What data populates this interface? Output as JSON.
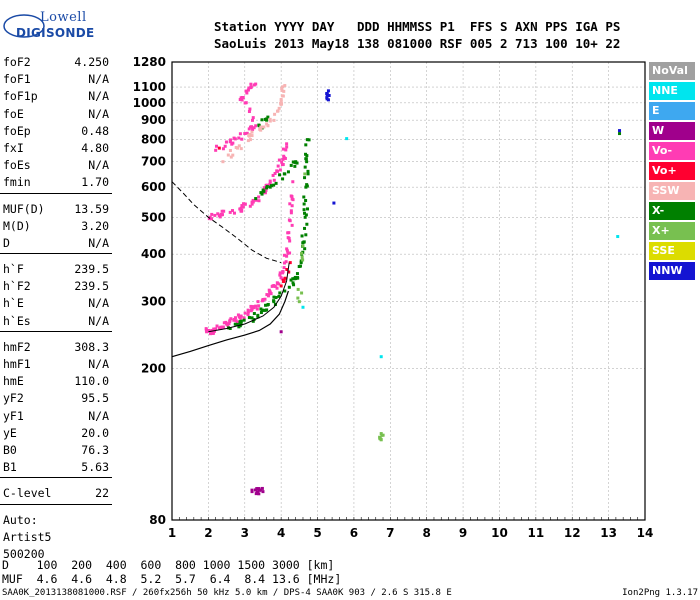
{
  "logo": {
    "line1": "Lowell",
    "line2": "DIGISONDE"
  },
  "header": {
    "row1": "Station YYYY DAY   DDD HHMMSS P1  FFS S AXN PPS IGA PS",
    "row2": "SaoLuis 2013 May18 138 081000 RSF 005 2 713 100 10+ 22"
  },
  "params_group1": [
    {
      "k": "foF2",
      "v": "4.250"
    },
    {
      "k": "foF1",
      "v": "N/A"
    },
    {
      "k": "foF1p",
      "v": "N/A"
    },
    {
      "k": "foE",
      "v": "N/A"
    },
    {
      "k": "foEp",
      "v": "0.48"
    },
    {
      "k": "fxI",
      "v": "4.80"
    },
    {
      "k": "foEs",
      "v": "N/A"
    },
    {
      "k": "fmin",
      "v": "1.70"
    }
  ],
  "params_group2": [
    {
      "k": "MUF(D)",
      "v": "13.59"
    },
    {
      "k": "M(D)",
      "v": "3.20"
    },
    {
      "k": "D",
      "v": "N/A"
    }
  ],
  "params_group3": [
    {
      "k": "h`F",
      "v": "239.5"
    },
    {
      "k": "h`F2",
      "v": "239.5"
    },
    {
      "k": "h`E",
      "v": "N/A"
    },
    {
      "k": "h`Es",
      "v": "N/A"
    }
  ],
  "params_group4": [
    {
      "k": "hmF2",
      "v": "308.3"
    },
    {
      "k": "hmF1",
      "v": "N/A"
    },
    {
      "k": "hmE",
      "v": "110.0"
    },
    {
      "k": "yF2",
      "v": "95.5"
    },
    {
      "k": "yF1",
      "v": "N/A"
    },
    {
      "k": "yE",
      "v": "20.0"
    },
    {
      "k": "B0",
      "v": "76.3"
    },
    {
      "k": "B1",
      "v": "5.63"
    }
  ],
  "params_group5": [
    {
      "k": "C-level",
      "v": "22"
    }
  ],
  "auto": {
    "line1": "Auto:",
    "line2": "Artist5",
    "line3": "500200"
  },
  "legend": [
    {
      "label": "NoVal",
      "bg": "#a0a0a0",
      "fg": "#ffffff"
    },
    {
      "label": "NNE",
      "bg": "#00e5ee",
      "fg": "#ffffff"
    },
    {
      "label": "E",
      "bg": "#3ea8f0",
      "fg": "#ffffff"
    },
    {
      "label": "W",
      "bg": "#a0008c",
      "fg": "#ffffff"
    },
    {
      "label": "Vo-",
      "bg": "#ff3cb4",
      "fg": "#ffffff"
    },
    {
      "label": "Vo+",
      "bg": "#ff0030",
      "fg": "#ffffff"
    },
    {
      "label": "SSW",
      "bg": "#f7b4b4",
      "fg": "#ffffff"
    },
    {
      "label": "X-",
      "bg": "#008000",
      "fg": "#ffffff"
    },
    {
      "label": "X+",
      "bg": "#78c050",
      "fg": "#ffffff"
    },
    {
      "label": "SSE",
      "bg": "#dcdc00",
      "fg": "#ffffff"
    },
    {
      "label": "NNW",
      "bg": "#1414d2",
      "fg": "#ffffff"
    }
  ],
  "muf_table": {
    "row1": "D    100  200  400  600  800 1000 1500 3000 [km]",
    "row2": "MUF  4.6  4.6  4.8  5.2  5.7  6.4  8.4 13.6 [MHz]"
  },
  "footer": {
    "left": "SAA0K_2013138081000.RSF / 260fx256h 50 kHz 5.0 km / DPS-4 SAA0K 903 / 2.6 S 315.8 E",
    "right": "Ion2Png 1.3.17"
  },
  "chart_data": {
    "type": "scatter",
    "title": "",
    "xlabel": "",
    "ylabel": "",
    "xlim": [
      1,
      14
    ],
    "ylim": [
      80,
      1280
    ],
    "y_scale": "log",
    "xticks": [
      1,
      2,
      3,
      4,
      5,
      6,
      7,
      8,
      9,
      10,
      11,
      12,
      13,
      14
    ],
    "yticks": [
      80,
      200,
      300,
      400,
      500,
      600,
      700,
      800,
      900,
      1000,
      1100,
      1280
    ],
    "grid": true,
    "series": [
      {
        "name": "Vo-",
        "color": "#ff3cb4",
        "points": [
          [
            1.95,
            250
          ],
          [
            2.1,
            252
          ],
          [
            2.3,
            256
          ],
          [
            2.5,
            262
          ],
          [
            2.7,
            268
          ],
          [
            2.9,
            275
          ],
          [
            3.1,
            282
          ],
          [
            3.3,
            292
          ],
          [
            3.5,
            304
          ],
          [
            3.7,
            318
          ],
          [
            3.9,
            335
          ],
          [
            4.05,
            360
          ],
          [
            4.15,
            395
          ],
          [
            4.22,
            440
          ],
          [
            4.28,
            520
          ],
          [
            4.32,
            620
          ],
          [
            2.05,
            500
          ],
          [
            2.3,
            505
          ],
          [
            2.6,
            515
          ],
          [
            2.9,
            528
          ],
          [
            3.2,
            548
          ],
          [
            3.5,
            580
          ],
          [
            3.7,
            615
          ],
          [
            3.9,
            660
          ],
          [
            4.05,
            710
          ],
          [
            4.15,
            780
          ],
          [
            2.2,
            750
          ],
          [
            2.6,
            790
          ],
          [
            3.0,
            830
          ],
          [
            3.3,
            870
          ],
          [
            2.9,
            1030
          ],
          [
            3.1,
            1080
          ],
          [
            3.3,
            1120
          ]
        ]
      },
      {
        "name": "X-",
        "color": "#008000",
        "points": [
          [
            2.6,
            255
          ],
          [
            2.9,
            262
          ],
          [
            3.2,
            272
          ],
          [
            3.5,
            285
          ],
          [
            3.8,
            300
          ],
          [
            4.1,
            320
          ],
          [
            4.4,
            345
          ],
          [
            4.55,
            380
          ],
          [
            4.62,
            430
          ],
          [
            4.66,
            500
          ],
          [
            4.68,
            600
          ],
          [
            4.7,
            700
          ],
          [
            4.72,
            800
          ],
          [
            3.3,
            560
          ],
          [
            3.7,
            600
          ],
          [
            4.1,
            650
          ],
          [
            4.4,
            700
          ],
          [
            3.4,
            870
          ],
          [
            3.6,
            900
          ],
          [
            13.3,
            830
          ]
        ]
      },
      {
        "name": "SSW",
        "color": "#f7b4b4",
        "points": [
          [
            2.4,
            700
          ],
          [
            2.8,
            760
          ],
          [
            3.2,
            820
          ],
          [
            3.6,
            880
          ],
          [
            3.9,
            950
          ],
          [
            4.0,
            1020
          ],
          [
            4.1,
            1110
          ]
        ]
      },
      {
        "name": "NNE",
        "color": "#00e5ee",
        "points": [
          [
            4.6,
            290
          ],
          [
            5.8,
            805
          ],
          [
            6.75,
            215
          ],
          [
            13.25,
            445
          ]
        ]
      },
      {
        "name": "NNW",
        "color": "#1414d2",
        "points": [
          [
            5.3,
            1075
          ],
          [
            5.3,
            1018
          ],
          [
            5.45,
            545
          ],
          [
            13.3,
            845
          ]
        ]
      },
      {
        "name": "X+",
        "color": "#78c050",
        "points": [
          [
            4.5,
            300
          ],
          [
            4.6,
            420
          ],
          [
            4.65,
            650
          ],
          [
            6.75,
            135
          ],
          [
            6.75,
            130
          ]
        ]
      },
      {
        "name": "Vo+",
        "color": "#ff0030",
        "points": [
          [
            2.3,
            760
          ],
          [
            4.0,
            330
          ],
          [
            4.25,
            380
          ]
        ]
      },
      {
        "name": "W",
        "color": "#a0008c",
        "points": [
          [
            3.2,
            95
          ],
          [
            3.35,
            95
          ],
          [
            3.5,
            95
          ],
          [
            4.0,
            250
          ]
        ]
      }
    ],
    "profile_curve": [
      [
        1,
        215
      ],
      [
        1.5,
        222
      ],
      [
        2,
        230
      ],
      [
        2.5,
        238
      ],
      [
        3,
        245
      ],
      [
        3.4,
        252
      ],
      [
        3.7,
        262
      ],
      [
        3.95,
        278
      ],
      [
        4.1,
        300
      ],
      [
        4.2,
        320
      ]
    ],
    "trace_curve": [
      [
        2.0,
        250
      ],
      [
        2.5,
        255
      ],
      [
        3.0,
        262
      ],
      [
        3.5,
        275
      ],
      [
        3.8,
        290
      ],
      [
        4.0,
        310
      ],
      [
        4.15,
        340
      ],
      [
        4.22,
        380
      ]
    ],
    "dashed_curve": [
      [
        1,
        620
      ],
      [
        1.3,
        580
      ],
      [
        1.6,
        540
      ],
      [
        2.0,
        500
      ],
      [
        2.4,
        470
      ],
      [
        2.8,
        440
      ],
      [
        3.2,
        410
      ],
      [
        3.6,
        390
      ],
      [
        4.0,
        380
      ]
    ]
  }
}
